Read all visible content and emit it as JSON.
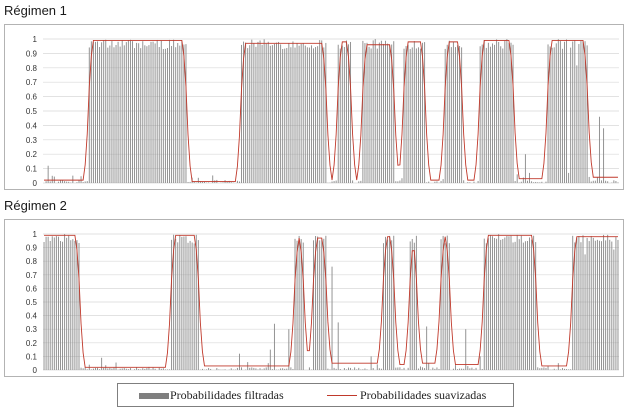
{
  "colors": {
    "bars": "#8c8c8c",
    "line": "#c0392b",
    "grid": "#d9d9d9"
  },
  "chart_data": [
    {
      "type": "bar",
      "title": "Régimen 1",
      "ylim": [
        0,
        1
      ],
      "yticks": [
        "0",
        "0.1",
        "0.2",
        "0.3",
        "0.4",
        "0.5",
        "0.6",
        "0.7",
        "0.8",
        "0.9",
        "1"
      ],
      "n_obs": 280,
      "segments": [
        [
          0,
          22,
          0.02
        ],
        [
          22,
          70,
          0.98
        ],
        [
          70,
          96,
          0.01
        ],
        [
          96,
          138,
          0.96
        ],
        [
          138,
          143,
          0.02
        ],
        [
          143,
          150,
          0.97
        ],
        [
          150,
          155,
          0.02
        ],
        [
          155,
          171,
          0.95
        ],
        [
          171,
          175,
          0.02
        ],
        [
          175,
          186,
          0.97
        ],
        [
          186,
          195,
          0.02
        ],
        [
          195,
          204,
          0.97
        ],
        [
          204,
          212,
          0.02
        ],
        [
          212,
          229,
          0.98
        ],
        [
          229,
          245,
          0.03
        ],
        [
          245,
          265,
          0.98
        ],
        [
          265,
          280,
          0.04
        ]
      ],
      "spikes": [
        [
          2,
          0.12
        ],
        [
          4,
          0.05
        ],
        [
          230,
          0.06
        ],
        [
          234,
          0.2
        ],
        [
          236,
          0.07
        ],
        [
          255,
          0.07
        ],
        [
          270,
          0.46
        ],
        [
          272,
          0.38
        ]
      ],
      "series": [
        {
          "name": "Probabilidades filtradas",
          "style": "bars"
        },
        {
          "name": "Probabilidades suavizadas",
          "style": "line"
        }
      ]
    },
    {
      "type": "bar",
      "title": "Régimen 2",
      "ylim": [
        0,
        1
      ],
      "yticks": [
        "0",
        "0.1",
        "0.2",
        "0.3",
        "0.4",
        "0.5",
        "0.6",
        "0.7",
        "0.8",
        "0.9",
        "1"
      ],
      "n_obs": 280,
      "segments": [
        [
          0,
          18,
          0.98
        ],
        [
          18,
          62,
          0.02
        ],
        [
          62,
          76,
          0.98
        ],
        [
          76,
          122,
          0.03
        ],
        [
          122,
          127,
          0.96
        ],
        [
          127,
          131,
          0.04
        ],
        [
          131,
          138,
          0.96
        ],
        [
          138,
          165,
          0.05
        ],
        [
          165,
          171,
          0.97
        ],
        [
          171,
          178,
          0.04
        ],
        [
          178,
          182,
          0.97
        ],
        [
          182,
          193,
          0.05
        ],
        [
          193,
          198,
          0.97
        ],
        [
          198,
          214,
          0.04
        ],
        [
          214,
          240,
          0.98
        ],
        [
          240,
          257,
          0.03
        ],
        [
          257,
          280,
          0.97
        ]
      ],
      "spikes": [
        [
          28,
          0.09
        ],
        [
          95,
          0.12
        ],
        [
          110,
          0.15
        ],
        [
          112,
          0.34
        ],
        [
          119,
          0.3
        ],
        [
          140,
          0.76
        ],
        [
          143,
          0.35
        ],
        [
          159,
          0.1
        ],
        [
          186,
          0.32
        ],
        [
          205,
          0.3
        ],
        [
          212,
          0.1
        ]
      ],
      "series": [
        {
          "name": "Probabilidades filtradas",
          "style": "bars"
        },
        {
          "name": "Probabilidades suavizadas",
          "style": "line"
        }
      ]
    }
  ],
  "legend": {
    "item1": "Probabilidades filtradas",
    "item2": "Probabilidades suavizadas"
  }
}
